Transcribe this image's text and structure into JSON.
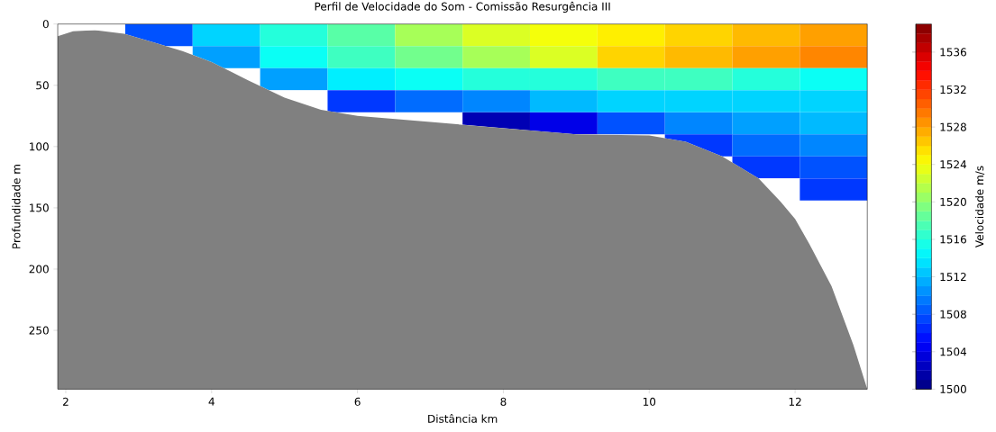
{
  "chart_data": {
    "type": "heatmap",
    "title": "Perfil de Velocidade do Som - Comissão Resurgência III",
    "xlabel": "Distância km",
    "ylabel": "Profundidade m",
    "clabel": "Velocidade m/s",
    "xlim": [
      1.89,
      12.99
    ],
    "ylim": [
      298,
      0
    ],
    "xticks": [
      2,
      4,
      6,
      8,
      10,
      12
    ],
    "yticks": [
      0,
      50,
      100,
      150,
      200,
      250
    ],
    "clim": [
      1500,
      1539
    ],
    "cticks": [
      1500,
      1504,
      1508,
      1512,
      1516,
      1520,
      1524,
      1528,
      1532,
      1536
    ],
    "x": [
      2.35,
      3.28,
      4.2,
      5.13,
      6.05,
      6.98,
      7.9,
      8.83,
      9.75,
      10.68,
      11.6,
      12.53
    ],
    "y": [
      9,
      27,
      45,
      63,
      81,
      99,
      117,
      135
    ],
    "cells": [
      [
        null,
        1508,
        1513,
        1516,
        1518,
        1521,
        1523,
        1524,
        1525,
        1526,
        1527,
        1528
      ],
      [
        null,
        null,
        1511,
        1515,
        1517,
        1519,
        1521,
        1523,
        1526,
        1527,
        1528,
        1529
      ],
      [
        null,
        null,
        null,
        1511,
        1514,
        1515,
        1516,
        1516,
        1517,
        1517,
        1516,
        1515
      ],
      [
        null,
        null,
        null,
        null,
        1507,
        1509,
        1510,
        1512,
        1513,
        1513,
        1513,
        1513
      ],
      [
        null,
        null,
        null,
        null,
        null,
        null,
        1502,
        1504,
        1508,
        1510,
        1511,
        1512
      ],
      [
        null,
        null,
        null,
        null,
        null,
        null,
        null,
        null,
        null,
        1507,
        1509,
        1510
      ],
      [
        null,
        null,
        null,
        null,
        null,
        null,
        null,
        null,
        null,
        null,
        1507,
        1508
      ],
      [
        null,
        null,
        null,
        null,
        null,
        null,
        null,
        null,
        null,
        null,
        null,
        1507
      ]
    ],
    "series": [
      {
        "type": "area",
        "color": "#808080",
        "x": [
          1.89,
          2.1,
          2.4,
          2.8,
          3.2,
          3.6,
          4.0,
          4.5,
          5.0,
          5.5,
          6.0,
          7.0,
          8.0,
          9.0,
          10.0,
          10.5,
          11.0,
          11.5,
          11.8,
          12.0,
          12.2,
          12.5,
          12.8,
          12.99
        ],
        "values": [
          10,
          6,
          5,
          8,
          15,
          22,
          31,
          46,
          60,
          70,
          75,
          80,
          85,
          90,
          91,
          96,
          108,
          126,
          145,
          159,
          180,
          214,
          262,
          298
        ]
      }
    ]
  }
}
